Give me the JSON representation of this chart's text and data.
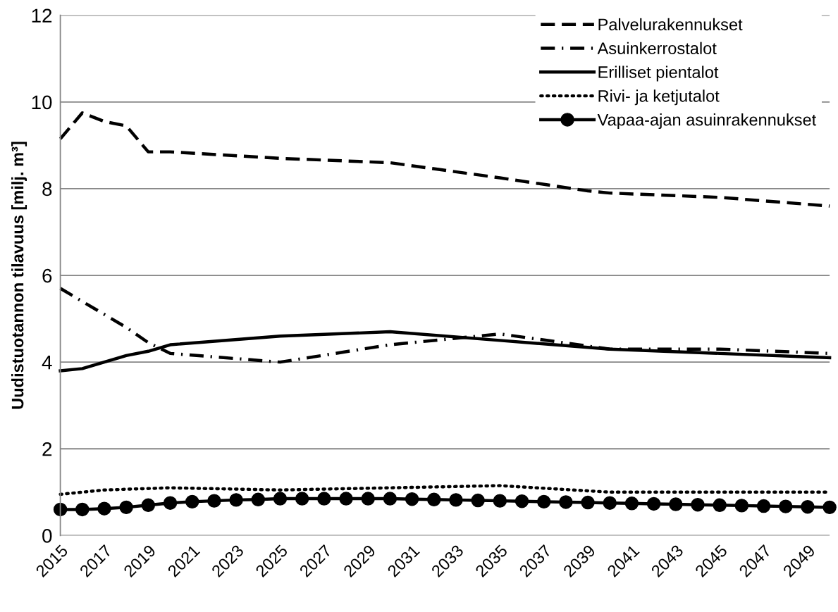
{
  "chart_data": {
    "type": "line",
    "ylabel": "Uudistuotannon tilavuus [milj. m³]",
    "xlim": [
      2015,
      2050
    ],
    "xticks": [
      2015,
      2017,
      2019,
      2021,
      2023,
      2025,
      2027,
      2029,
      2031,
      2033,
      2035,
      2037,
      2039,
      2041,
      2043,
      2045,
      2047,
      2049
    ],
    "ylim": [
      0,
      12
    ],
    "yticks": [
      0,
      2,
      4,
      6,
      8,
      10,
      12
    ],
    "grid": "y",
    "legend": "top right",
    "series": [
      {
        "name": "Palvelurakennukset",
        "color": "#000000",
        "line_style": "longdash",
        "marker": "none",
        "x": [
          2015,
          2016,
          2017,
          2018,
          2019,
          2020,
          2025,
          2030,
          2035,
          2039,
          2040,
          2045,
          2050
        ],
        "values": [
          9.15,
          9.75,
          9.55,
          9.45,
          8.85,
          8.85,
          8.7,
          8.6,
          8.25,
          7.95,
          7.9,
          7.8,
          7.6
        ]
      },
      {
        "name": "Asuinkerrostalot",
        "color": "#000000",
        "line_style": "dashdot",
        "marker": "none",
        "x": [
          2015,
          2016,
          2017,
          2018,
          2019,
          2020,
          2025,
          2030,
          2035,
          2040,
          2045,
          2050
        ],
        "values": [
          5.7,
          5.4,
          5.1,
          4.8,
          4.45,
          4.2,
          4.0,
          4.4,
          4.65,
          4.3,
          4.3,
          4.2
        ]
      },
      {
        "name": "Erilliset pientalot",
        "color": "#000000",
        "line_style": "solid",
        "marker": "none",
        "x": [
          2015,
          2016,
          2017,
          2018,
          2019,
          2020,
          2025,
          2030,
          2035,
          2040,
          2045,
          2050
        ],
        "values": [
          3.8,
          3.85,
          4.0,
          4.15,
          4.25,
          4.4,
          4.6,
          4.7,
          4.5,
          4.3,
          4.2,
          4.1
        ]
      },
      {
        "name": "Rivi- ja ketjutalot",
        "color": "#000000",
        "line_style": "dotted",
        "marker": "none",
        "x": [
          2015,
          2017,
          2020,
          2025,
          2030,
          2035,
          2040,
          2045,
          2050
        ],
        "values": [
          0.95,
          1.05,
          1.1,
          1.05,
          1.1,
          1.15,
          1.0,
          1.0,
          1.0
        ]
      },
      {
        "name": "Vapaa-ajan asuinrakennukset",
        "color": "#000000",
        "line_style": "solid",
        "marker": "circle",
        "x": [
          2015,
          2016,
          2017,
          2018,
          2019,
          2020,
          2021,
          2022,
          2023,
          2024,
          2025,
          2026,
          2027,
          2028,
          2029,
          2030,
          2031,
          2032,
          2033,
          2034,
          2035,
          2036,
          2037,
          2038,
          2039,
          2040,
          2041,
          2042,
          2043,
          2044,
          2045,
          2046,
          2047,
          2048,
          2049,
          2050
        ],
        "values": [
          0.6,
          0.6,
          0.62,
          0.65,
          0.7,
          0.75,
          0.78,
          0.8,
          0.82,
          0.83,
          0.85,
          0.85,
          0.85,
          0.85,
          0.85,
          0.85,
          0.84,
          0.83,
          0.82,
          0.81,
          0.8,
          0.79,
          0.78,
          0.77,
          0.76,
          0.75,
          0.74,
          0.73,
          0.72,
          0.71,
          0.7,
          0.69,
          0.68,
          0.67,
          0.66,
          0.65
        ]
      }
    ]
  }
}
